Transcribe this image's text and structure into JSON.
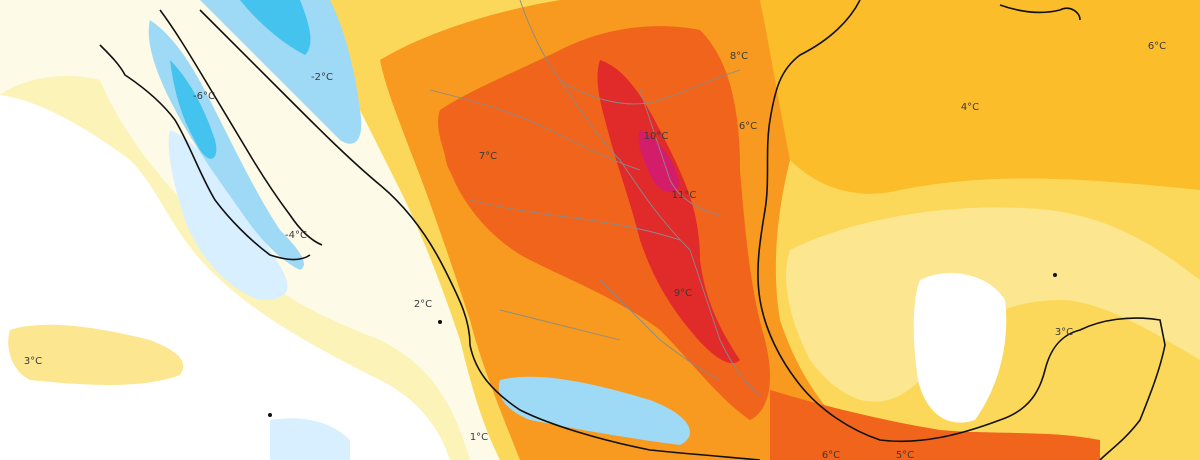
{
  "map": {
    "colors": {
      "ocean_neutral": "#ffffff",
      "light_warm": "#fbf3b8",
      "warm": "#fcd85a",
      "warmer": "#fbbd2a",
      "hot": "#f79a1f",
      "hotter": "#f0641c",
      "hottest": "#e12a2a",
      "extreme": "#d41d6a",
      "light_cold": "#d8efff",
      "cold": "#9ed9f5",
      "colder": "#45c3ef",
      "coast": "#111111",
      "border": "#8a8a8a"
    },
    "labels": [
      {
        "id": "label-minus6",
        "text": "-6°C"
      },
      {
        "id": "label-minus2",
        "text": "-2°C"
      },
      {
        "id": "label-minus4",
        "text": "-4°C"
      },
      {
        "id": "label-7",
        "text": "7°C"
      },
      {
        "id": "label-10",
        "text": "10°C"
      },
      {
        "id": "label-11",
        "text": "11°C"
      },
      {
        "id": "label-9",
        "text": "9°C"
      },
      {
        "id": "label-8",
        "text": "8°C"
      },
      {
        "id": "label-6-texas",
        "text": "6°C"
      },
      {
        "id": "label-4",
        "text": "4°C"
      },
      {
        "id": "label-6-east",
        "text": "6°C"
      },
      {
        "id": "label-2",
        "text": "2°C"
      },
      {
        "id": "label-3-west",
        "text": "3°C"
      },
      {
        "id": "label-1",
        "text": "1°C"
      },
      {
        "id": "label-3-yucatan",
        "text": "3°C"
      },
      {
        "id": "label-5",
        "text": "5°C"
      },
      {
        "id": "label-6-south",
        "text": "6°C"
      }
    ]
  }
}
